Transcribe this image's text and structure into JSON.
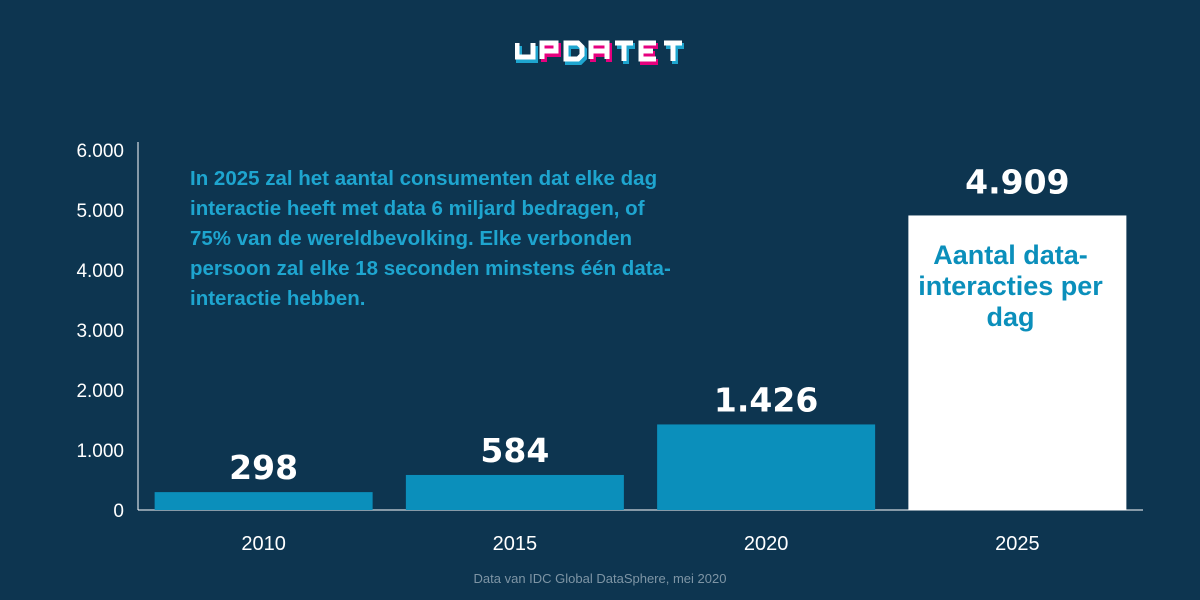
{
  "logo": {
    "text": "UPDATET",
    "colors": [
      "#ffffff",
      "#e6007e",
      "#1ea5cf"
    ]
  },
  "colors": {
    "background": "#0d3550",
    "bar": "#0b8fbb",
    "highlight_bar": "#ffffff",
    "annotation": "#1ea5cf",
    "axis": "#ffffff",
    "source": "#7e95a5"
  },
  "chart_data": {
    "type": "bar",
    "categories": [
      "2010",
      "2015",
      "2020",
      "2025"
    ],
    "values": [
      298,
      584,
      1426,
      4909
    ],
    "value_labels": [
      "298",
      "584",
      "1.426",
      "4.909"
    ],
    "highlight_index": 3,
    "highlight_inner_label": "Aantal data-interacties per dag",
    "ylim": [
      0,
      6000
    ],
    "yticks": [
      0,
      1000,
      2000,
      3000,
      4000,
      5000,
      6000
    ],
    "ytick_labels": [
      "0",
      "1.000",
      "2.000",
      "3.000",
      "4.000",
      "5.000",
      "6.000"
    ],
    "xlabel": "",
    "ylabel": "",
    "grid": false,
    "annotation": "In 2025 zal het aantal consumenten dat elke dag interactie heeft met data 6 miljard bedragen, of 75% van de wereldbevolking. Elke verbonden persoon zal elke 18 seconden minstens één data-interactie hebben."
  },
  "source": "Data van IDC Global DataSphere, mei 2020"
}
